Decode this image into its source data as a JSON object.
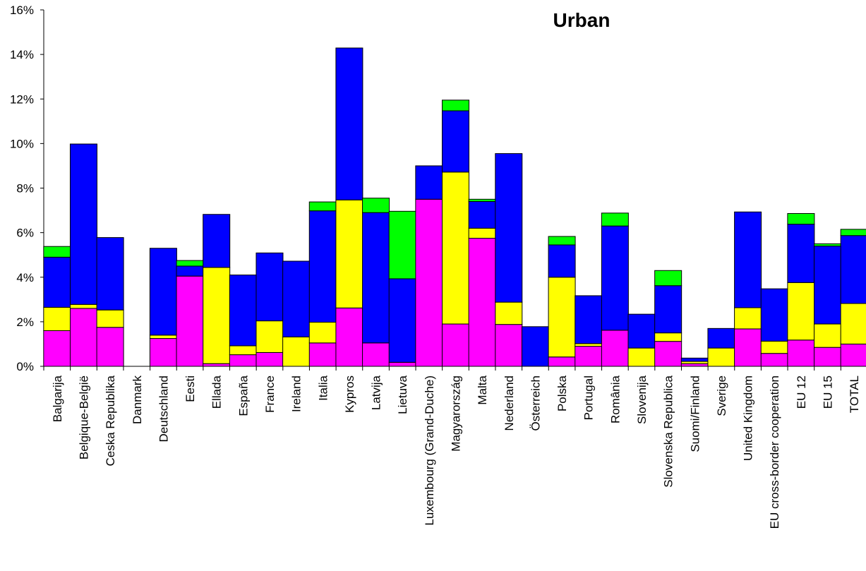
{
  "chart_data": {
    "type": "bar",
    "stacked": true,
    "title": "Urban",
    "xlabel": "",
    "ylabel": "",
    "ylim": [
      0,
      16
    ],
    "y_ticks": [
      "0%",
      "2%",
      "4%",
      "6%",
      "8%",
      "10%",
      "12%",
      "14%",
      "16%"
    ],
    "legend": "none",
    "grid": false,
    "categories": [
      "Balgarija",
      "Belgique-België",
      "Ceska Republika",
      "Danmark",
      "Deutschland",
      "Eesti",
      "Ellada",
      "España",
      "France",
      "Ireland",
      "Italia",
      "Kypros",
      "Latvija",
      "Lietuva",
      "Luxembourg (Grand-Duche)",
      "Magyarország",
      "Malta",
      "Nederland",
      "Österreich",
      "Polska",
      "Portugal",
      "România",
      "Slovenija",
      "Slovenska Republica",
      "Suomi/Finland",
      "Sverige",
      "United Kingdom",
      "EU cross-border cooperation",
      "EU 12",
      "EU 15",
      "TOTAL"
    ],
    "series": [
      {
        "color": "#ff00ff",
        "values": [
          1.6,
          2.6,
          1.75,
          0,
          1.25,
          4.05,
          0.12,
          0.52,
          0.62,
          0,
          1.05,
          2.62,
          1.05,
          0.18,
          7.5,
          1.9,
          5.75,
          1.88,
          0,
          0.42,
          0.9,
          1.62,
          0,
          1.12,
          0.12,
          0,
          1.68,
          0.58,
          1.18,
          0.85,
          1.0
        ]
      },
      {
        "color": "#ffff00",
        "values": [
          1.05,
          0.18,
          0.78,
          0,
          0.15,
          0,
          4.32,
          0.4,
          1.42,
          1.32,
          0.93,
          4.85,
          0,
          0,
          0,
          6.82,
          0.45,
          1.0,
          0,
          3.58,
          0.12,
          0,
          0.82,
          0.38,
          0.1,
          0.82,
          0.95,
          0.55,
          2.58,
          1.05,
          1.82
        ]
      },
      {
        "color": "#0000ff",
        "values": [
          2.25,
          7.2,
          3.25,
          0,
          3.9,
          0.45,
          2.38,
          3.18,
          3.05,
          3.4,
          5.0,
          6.82,
          5.85,
          3.75,
          1.5,
          2.75,
          1.2,
          6.67,
          1.78,
          1.45,
          2.15,
          4.68,
          1.52,
          2.12,
          0.15,
          0.88,
          4.3,
          2.35,
          2.62,
          3.5,
          3.05
        ]
      },
      {
        "color": "#00ff00",
        "values": [
          0.48,
          0,
          0,
          0,
          0,
          0.25,
          0,
          0,
          0,
          0,
          0.4,
          0,
          0.65,
          3.03,
          0,
          0.48,
          0.1,
          0,
          0,
          0.38,
          0,
          0.58,
          0,
          0.68,
          0,
          0,
          0,
          0,
          0.48,
          0.1,
          0.28
        ]
      }
    ]
  }
}
